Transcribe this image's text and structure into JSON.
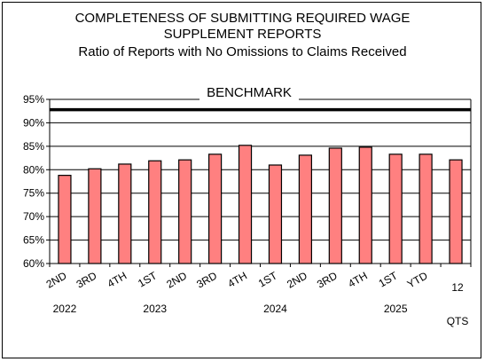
{
  "chart_data": {
    "type": "bar",
    "title_line1": "COMPLETENESS OF SUBMITTING REQUIRED WAGE",
    "title_line2": "SUPPLEMENT REPORTS",
    "subtitle": "Ratio of Reports with No Omissions to Claims Received",
    "benchmark_label": "BENCHMARK",
    "benchmark_value": 92.8,
    "categories": [
      "2ND",
      "3RD",
      "4TH",
      "1ST",
      "2ND",
      "3RD",
      "4TH",
      "1ST",
      "2ND",
      "3RD",
      "4TH",
      "1ST",
      "YTD",
      "12"
    ],
    "values": [
      78.8,
      80.2,
      81.2,
      81.9,
      82.1,
      83.3,
      85.2,
      81.0,
      83.1,
      84.6,
      84.8,
      83.3,
      83.3,
      82.1
    ],
    "group_labels": [
      {
        "index": 0,
        "label": "2022"
      },
      {
        "index": 3,
        "label": "2023"
      },
      {
        "index": 7,
        "label": "2024"
      },
      {
        "index": 11,
        "label": "2025"
      },
      {
        "index": 13,
        "label": "QTS"
      }
    ],
    "ylim": [
      60,
      95
    ],
    "yticks": [
      60,
      65,
      70,
      75,
      80,
      85,
      90,
      95
    ],
    "ytick_suffix": "%",
    "bar_color": "#ff8080",
    "grid": true
  }
}
